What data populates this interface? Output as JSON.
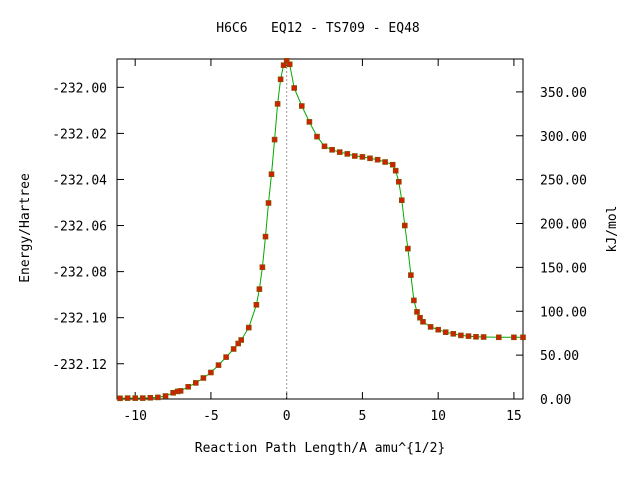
{
  "chart_data": {
    "type": "line",
    "title": "H6C6   EQ12 - TS709 - EQ48",
    "xlabel": "Reaction Path Length/A amu^{1/2}",
    "ylabel": "Energy/Hartree",
    "y2label": "kJ/mol",
    "xlim": [
      -11.2,
      15.6
    ],
    "ylim": [
      -232.1353,
      -231.9877
    ],
    "y2lim": [
      0,
      387.5
    ],
    "xticks": [
      -10,
      -5,
      0,
      5,
      10,
      15
    ],
    "xtick_labels": [
      "-10",
      "-5",
      "0",
      "5",
      "10",
      "15"
    ],
    "yticks": [
      -232.0,
      -232.02,
      -232.04,
      -232.06,
      -232.08,
      -232.1,
      -232.12
    ],
    "ytick_labels": [
      "-232.00",
      "-232.02",
      "-232.04",
      "-232.06",
      "-232.08",
      "-232.10",
      "-232.12"
    ],
    "y2ticks": [
      0,
      50,
      100,
      150,
      200,
      250,
      300,
      350
    ],
    "y2tick_labels": [
      "0.00",
      "50.00",
      "100.00",
      "150.00",
      "200.00",
      "250.00",
      "300.00",
      "350.00"
    ],
    "ts_marker_x": 0,
    "grid": false,
    "legend": "none",
    "line_color": "#00aa00",
    "marker_color": "#cc2200",
    "marker_edge_color": "#7a5a00",
    "ts_line_color": "#999999",
    "series": [
      {
        "x": [
          -11.0,
          -10.5,
          -10.0,
          -9.5,
          -9.0,
          -8.5,
          -8.0,
          -7.5,
          -7.2,
          -7.0,
          -6.5,
          -6.0,
          -5.5,
          -5.0,
          -4.5,
          -4.0,
          -3.5,
          -3.2,
          -3.0,
          -2.5,
          -2.0,
          -1.8,
          -1.6,
          -1.4,
          -1.2,
          -1.0,
          -0.8,
          -0.6,
          -0.4,
          -0.2,
          0.0,
          0.2,
          0.5,
          1.0,
          1.5,
          2.0,
          2.5,
          3.0,
          3.5,
          4.0,
          4.5,
          5.0,
          5.5,
          6.0,
          6.5,
          7.0,
          7.2,
          7.4,
          7.6,
          7.8,
          8.0,
          8.2,
          8.4,
          8.6,
          8.8,
          9.0,
          9.5,
          10.0,
          10.5,
          11.0,
          11.5,
          12.0,
          12.5,
          13.0,
          14.0,
          15.0,
          15.6
        ],
        "y": [
          -232.135,
          -232.1349,
          -232.1349,
          -232.1349,
          -232.1348,
          -232.1346,
          -232.134,
          -232.1326,
          -232.132,
          -232.1318,
          -232.13,
          -232.1283,
          -232.1262,
          -232.1238,
          -232.1206,
          -232.1171,
          -232.1136,
          -232.1112,
          -232.1097,
          -232.1043,
          -232.0944,
          -232.0876,
          -232.0781,
          -232.0648,
          -232.0502,
          -232.0377,
          -232.0227,
          -232.0072,
          -231.9965,
          -231.9904,
          -231.9885,
          -231.99,
          -232.0003,
          -232.0081,
          -232.015,
          -232.0214,
          -232.0256,
          -232.0271,
          -232.0281,
          -232.0289,
          -232.0298,
          -232.0302,
          -232.0308,
          -232.0314,
          -232.0324,
          -232.0336,
          -232.0362,
          -232.041,
          -232.049,
          -232.06,
          -232.07,
          -232.0815,
          -232.0925,
          -232.0975,
          -232.1,
          -232.1018,
          -232.104,
          -232.1052,
          -232.1063,
          -232.107,
          -232.1077,
          -232.108,
          -232.1083,
          -232.1084,
          -232.1085,
          -232.1085,
          -232.1085
        ]
      }
    ]
  }
}
